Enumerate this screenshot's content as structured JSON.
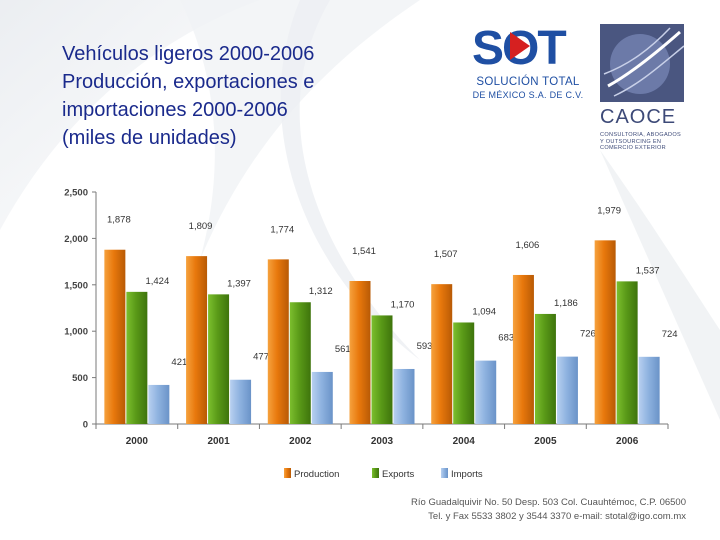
{
  "title_lines": [
    "Vehículos ligeros 2000-2006",
    "Producción, exportaciones e",
    "importaciones 2000-2006",
    "(miles de unidades)"
  ],
  "logos": {
    "sot": {
      "word": "SOT",
      "line1": "SOLUCIÓN TOTAL",
      "line2": "DE MÉXICO S.A. DE C.V."
    },
    "caoce": {
      "name": "CAOCE",
      "tag_lines": [
        "CONSULTORIA, ABOGADOS",
        "Y OUTSOURCING EN",
        "COMERCIO EXTERIOR"
      ]
    }
  },
  "colors": {
    "title": "#1a2a8c",
    "production": "#e8780c",
    "exports": "#5a9a18",
    "imports": "#8fb3e0",
    "axis": "#7a7a7a"
  },
  "chart_data": {
    "type": "bar",
    "title": "",
    "xlabel": "",
    "ylabel": "",
    "ylim": [
      0,
      2500
    ],
    "yticks": [
      0,
      500,
      1000,
      1500,
      2000,
      2500
    ],
    "ytick_labels": [
      "0",
      "500",
      "1,000",
      "1,500",
      "2,000",
      "2,500"
    ],
    "grid": false,
    "legend_position": "bottom",
    "categories": [
      "2000",
      "2001",
      "2002",
      "2003",
      "2004",
      "2005",
      "2006"
    ],
    "series": [
      {
        "name": "Production",
        "values": [
          1878,
          1809,
          1774,
          1541,
          1507,
          1606,
          1979
        ],
        "labels": [
          "1,878",
          "1,809",
          "1,774",
          "1,541",
          "1,507",
          "1,606",
          "1,979"
        ]
      },
      {
        "name": "Exports",
        "values": [
          1424,
          1397,
          1312,
          1170,
          1094,
          1186,
          1537
        ],
        "labels": [
          "1,424",
          "1,397",
          "1,312",
          "1,170",
          "1,094",
          "1,186",
          "1,537"
        ]
      },
      {
        "name": "Imports",
        "values": [
          421,
          477,
          561,
          593,
          683,
          726,
          724
        ],
        "labels": [
          "421",
          "477",
          "561",
          "593",
          "683",
          "726",
          "724"
        ]
      }
    ]
  },
  "footer": {
    "line1": "Río Guadalquivir No. 50 Desp. 503 Col. Cuauhtémoc, C.P. 06500",
    "line2": "Tel. y Fax 5533 3802 y 3544 3370    e-mail: stotal@igo.com.mx"
  }
}
